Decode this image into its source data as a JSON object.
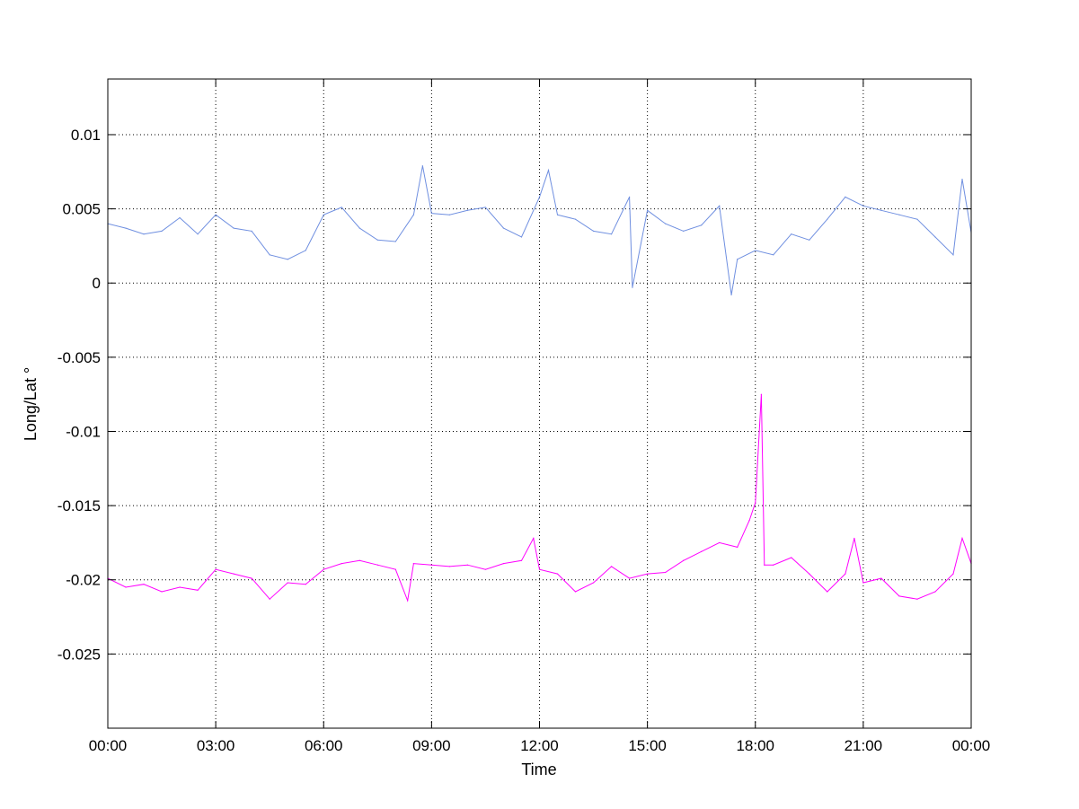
{
  "chart_data": {
    "type": "line",
    "title": "",
    "xlabel": "Time",
    "ylabel": "Long/Lat °",
    "xlim": [
      "00:00",
      "24:00"
    ],
    "ylim": [
      -0.03,
      0.01375
    ],
    "grid": true,
    "grid_style": "dotted",
    "x_ticks": [
      "00:00",
      "03:00",
      "06:00",
      "09:00",
      "12:00",
      "15:00",
      "18:00",
      "21:00",
      "00:00"
    ],
    "y_ticks": [
      0.01,
      0.005,
      0,
      -0.005,
      -0.01,
      -0.015,
      -0.02,
      -0.025
    ],
    "y_tick_labels": [
      "0.01",
      "0.005",
      "0",
      "-0.005",
      "-0.01",
      "-0.015",
      "-0.02",
      "-0.025"
    ],
    "series": [
      {
        "color": "#6F8FE0",
        "x": [
          "00:00",
          "00:30",
          "01:00",
          "01:30",
          "02:00",
          "02:30",
          "03:00",
          "03:30",
          "04:00",
          "04:30",
          "05:00",
          "05:30",
          "06:00",
          "06:30",
          "07:00",
          "07:30",
          "08:00",
          "08:30",
          "08:45",
          "09:00",
          "09:30",
          "10:00",
          "10:30",
          "11:00",
          "11:30",
          "12:00",
          "12:15",
          "12:30",
          "13:00",
          "13:30",
          "14:00",
          "14:30",
          "14:35",
          "15:00",
          "15:30",
          "16:00",
          "16:30",
          "17:00",
          "17:20",
          "17:30",
          "18:00",
          "18:30",
          "19:00",
          "19:30",
          "20:00",
          "20:30",
          "21:00",
          "21:30",
          "22:00",
          "22:30",
          "23:00",
          "23:30",
          "23:45",
          "24:00"
        ],
        "y": [
          0.004,
          0.0037,
          0.0033,
          0.0035,
          0.0044,
          0.0033,
          0.0046,
          0.0037,
          0.0035,
          0.0019,
          0.0016,
          0.0022,
          0.0046,
          0.0051,
          0.0037,
          0.0029,
          0.0028,
          0.0046,
          0.0079,
          0.0047,
          0.0046,
          0.0049,
          0.0051,
          0.0037,
          0.0031,
          0.0058,
          0.0076,
          0.0046,
          0.0043,
          0.0035,
          0.0033,
          0.0058,
          -0.0003,
          0.0049,
          0.004,
          0.0035,
          0.0039,
          0.0052,
          -0.0008,
          0.0016,
          0.0022,
          0.0019,
          0.0033,
          0.0029,
          0.0043,
          0.0058,
          0.0052,
          0.0049,
          0.0046,
          0.0043,
          0.0031,
          0.0019,
          0.007,
          0.0034
        ]
      },
      {
        "color": "#FF00FF",
        "x": [
          "00:00",
          "00:30",
          "01:00",
          "01:30",
          "02:00",
          "02:30",
          "03:00",
          "03:30",
          "04:00",
          "04:30",
          "05:00",
          "05:30",
          "06:00",
          "06:30",
          "07:00",
          "07:30",
          "08:00",
          "08:20",
          "08:30",
          "09:00",
          "09:30",
          "10:00",
          "10:30",
          "11:00",
          "11:30",
          "11:50",
          "12:00",
          "12:30",
          "13:00",
          "13:30",
          "14:00",
          "14:30",
          "15:00",
          "15:30",
          "16:00",
          "16:30",
          "17:00",
          "17:30",
          "17:50",
          "18:00",
          "18:10",
          "18:15",
          "18:30",
          "19:00",
          "19:30",
          "20:00",
          "20:30",
          "20:45",
          "21:00",
          "21:30",
          "22:00",
          "22:30",
          "23:00",
          "23:30",
          "23:45",
          "24:00"
        ],
        "y": [
          -0.0199,
          -0.0205,
          -0.0203,
          -0.0208,
          -0.0205,
          -0.0207,
          -0.0193,
          -0.0196,
          -0.0199,
          -0.0213,
          -0.0202,
          -0.0203,
          -0.0193,
          -0.0189,
          -0.0187,
          -0.019,
          -0.0193,
          -0.0214,
          -0.0189,
          -0.019,
          -0.0191,
          -0.019,
          -0.0193,
          -0.0189,
          -0.0187,
          -0.0172,
          -0.0193,
          -0.0196,
          -0.0208,
          -0.0202,
          -0.0191,
          -0.0199,
          -0.0196,
          -0.0195,
          -0.0187,
          -0.0181,
          -0.0175,
          -0.0178,
          -0.016,
          -0.0148,
          -0.0075,
          -0.019,
          -0.019,
          -0.0185,
          -0.0196,
          -0.0208,
          -0.0196,
          -0.0172,
          -0.0202,
          -0.0199,
          -0.0211,
          -0.0213,
          -0.0208,
          -0.0196,
          -0.0172,
          -0.0189
        ]
      }
    ]
  }
}
